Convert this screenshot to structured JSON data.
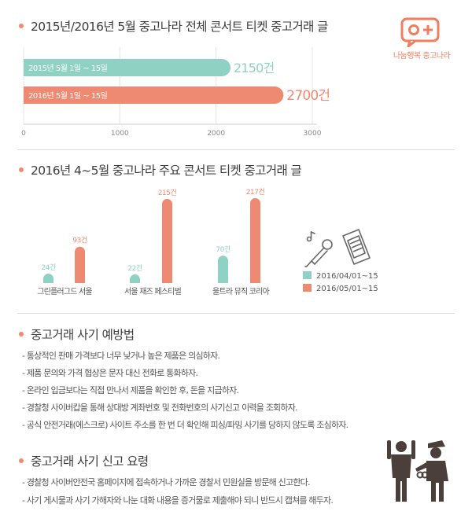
{
  "logo": {
    "text": "나눔행복 중고나라",
    "color": "#ef7e5f"
  },
  "section1": {
    "title": "2015년/2016년 5월 중고나라 전체 콘서트 티켓 중고거래 글",
    "chart_data": {
      "type": "bar",
      "orientation": "horizontal",
      "categories": [
        "2015년 5월 1일 ~ 15일",
        "2016년 5월 1일 ~ 15일"
      ],
      "values": [
        2150,
        2700
      ],
      "value_labels": [
        "2150건",
        "2700건"
      ],
      "colors": [
        "#8fd1c3",
        "#ef8a72"
      ],
      "xlim": [
        0,
        3000
      ],
      "xticks": [
        0,
        1000,
        2000,
        3000
      ],
      "xtick_labels": [
        "0",
        "1000",
        "2000",
        "3000"
      ],
      "grid": true
    }
  },
  "section2": {
    "title": "2016년 4~5월 중고나라 주요 콘서트 티켓 중고거래 글",
    "chart_data": {
      "type": "bar",
      "categories": [
        "그린플러그드 서울",
        "서울 재즈 페스티벌",
        "울트라 뮤직 코리아"
      ],
      "series": [
        {
          "name": "2016/04/01~15",
          "values": [
            24,
            22,
            70
          ],
          "labels": [
            "24건",
            "22건",
            "70건"
          ],
          "color": "#8fd1c3"
        },
        {
          "name": "2016/05/01~15",
          "values": [
            93,
            215,
            217
          ],
          "labels": [
            "93건",
            "215건",
            "217건"
          ],
          "color": "#ef8a72"
        }
      ],
      "ylim": [
        0,
        217
      ],
      "legend": "right"
    }
  },
  "section3": {
    "title": "중고거래 사기 예방법",
    "items": [
      "- 통상적인 판매 가격보다 너무 낮거나 높은 제품은 의심하자.",
      "- 제품 문의와 가격 협상은 문자 대신 전화로 통화하자.",
      "- 온라인 입금보다는 직접 만나서 제품을 확인한 후, 돈을 지급하자.",
      "- 경찰청 사이버캅을 통해 상대방 계좌번호 및 전화번호의 사기신고 이력을 조회하자.",
      "- 공식 안전거래(에스크로) 사이트 주소를 한 번 더 확인해 피싱/파밍 사기를 당하지 않도록 조심하자."
    ]
  },
  "section4": {
    "title": "중고거래 사기 신고 요령",
    "items": [
      "- 경찰청 사이버안전국 홈페이지에 접속하거나 가까운 경찰서 민원실을 방문해 신고한다.",
      "- 사기 게시물과 사기 가해자와 나눈 대화 내용을 증거물로 제출해야 되니 반드시 캡쳐를 해두자."
    ]
  },
  "icons": [
    "speech-bubble-plus-icon",
    "microphone-icon",
    "ticket-icon",
    "police-arrest-icon"
  ],
  "colors": {
    "teal": "#8fd1c3",
    "coral": "#ef8a72",
    "icon_dark": "#4a3f3a"
  }
}
